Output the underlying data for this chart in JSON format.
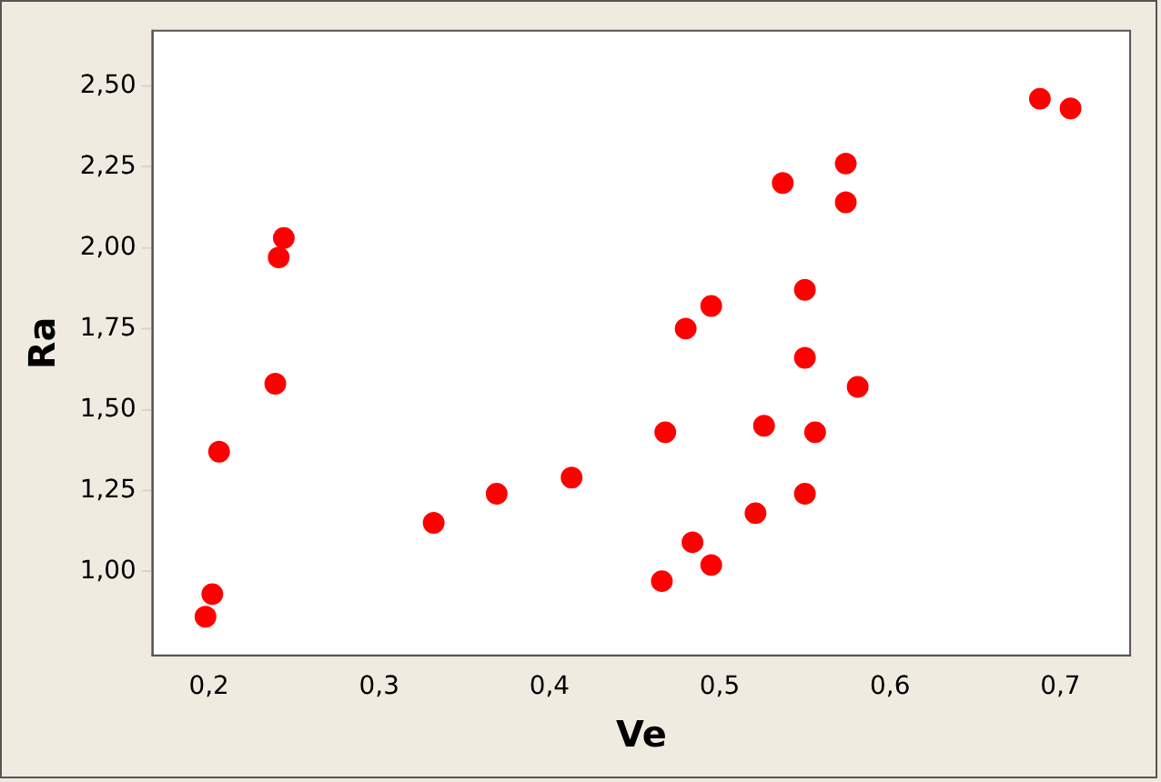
{
  "chart_data": {
    "type": "scatter",
    "xlabel": "Ve",
    "ylabel": "Ra",
    "x": [
      0.198,
      0.202,
      0.206,
      0.239,
      0.241,
      0.244,
      0.332,
      0.369,
      0.413,
      0.466,
      0.468,
      0.48,
      0.484,
      0.495,
      0.495,
      0.521,
      0.526,
      0.537,
      0.55,
      0.55,
      0.55,
      0.556,
      0.574,
      0.574,
      0.581,
      0.688,
      0.706
    ],
    "series": [
      {
        "color": "#ff0000",
        "values": [
          0.86,
          0.93,
          1.37,
          1.58,
          1.97,
          2.03,
          1.15,
          1.24,
          1.29,
          0.97,
          1.43,
          1.75,
          1.09,
          1.82,
          1.02,
          1.18,
          1.45,
          2.2,
          1.87,
          1.66,
          1.24,
          1.43,
          2.26,
          2.14,
          1.57,
          2.46,
          2.43
        ]
      }
    ],
    "xlim": [
      0.167,
      0.741
    ],
    "ylim": [
      0.74,
      2.67
    ],
    "xticks": [
      {
        "value": 0.2,
        "label": "0,2"
      },
      {
        "value": 0.3,
        "label": "0,3"
      },
      {
        "value": 0.4,
        "label": "0,4"
      },
      {
        "value": 0.5,
        "label": "0,5"
      },
      {
        "value": 0.6,
        "label": "0,6"
      },
      {
        "value": 0.7,
        "label": "0,7"
      }
    ],
    "yticks": [
      {
        "value": 1.0,
        "label": "1,00"
      },
      {
        "value": 1.25,
        "label": "1,25"
      },
      {
        "value": 1.5,
        "label": "1,50"
      },
      {
        "value": 1.75,
        "label": "1,75"
      },
      {
        "value": 2.0,
        "label": "2,00"
      },
      {
        "value": 2.25,
        "label": "2,25"
      },
      {
        "value": 2.5,
        "label": "2,50"
      }
    ],
    "grid": false,
    "legend": false,
    "marker": "circle"
  }
}
